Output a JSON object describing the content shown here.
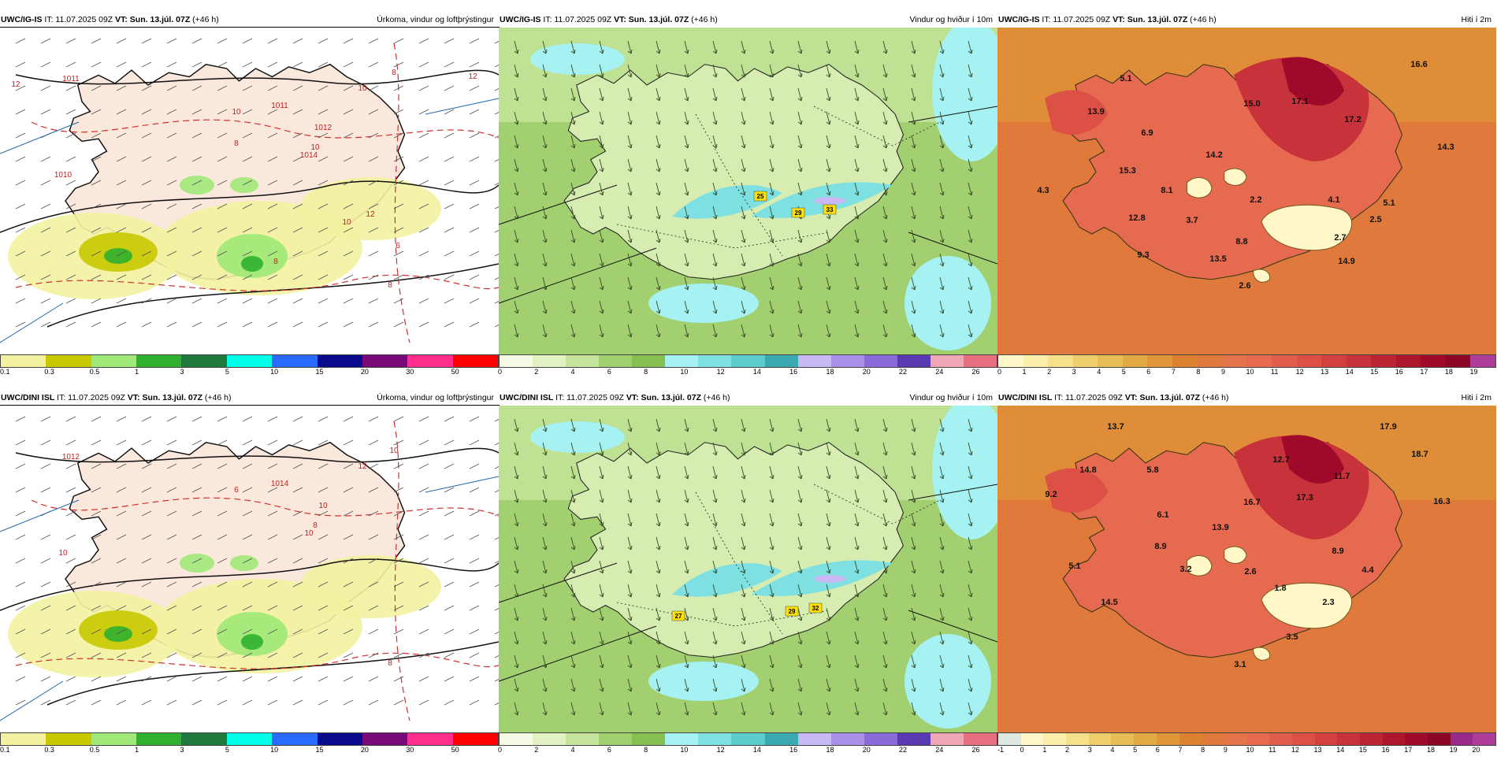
{
  "panels": [
    {
      "id": "p1",
      "model": "UWC/IG-IS",
      "it_label": "IT: 11.07.2025 09Z",
      "vt_label": "VT: Sun. 13.júl. 07Z",
      "lead": "(+46 h)",
      "product": "Úrkoma, vindur og loftþrýstingur",
      "type": "precip",
      "map_labels": [
        "1011",
        "1011",
        "1012",
        "1014",
        "1010",
        "10",
        "10",
        "10",
        "8",
        "8",
        "12",
        "12",
        "12",
        "6",
        "8",
        "10",
        "8"
      ],
      "colorbar": {
        "ticks": [
          "0.1",
          "0.3",
          "0.5",
          "1",
          "3",
          "5",
          "10",
          "15",
          "20",
          "30",
          "50"
        ],
        "colors": [
          "#f2f2a0",
          "#c8c800",
          "#a0e878",
          "#30b030",
          "#1e7a3c",
          "#00ffe6",
          "#2a6aff",
          "#0a0a8c",
          "#7a0a7a",
          "#ff2d8c",
          "#ff0000"
        ]
      }
    },
    {
      "id": "p2",
      "model": "UWC/IG-IS",
      "it_label": "IT: 11.07.2025 09Z",
      "vt_label": "VT: Sun. 13.júl. 07Z",
      "lead": "(+46 h)",
      "product": "Vindur og hviður í 10m",
      "type": "wind",
      "map_labels": [
        "25",
        "29",
        "33"
      ],
      "colorbar": {
        "ticks": [
          "0",
          "2",
          "4",
          "6",
          "8",
          "10",
          "12",
          "14",
          "16",
          "18",
          "20",
          "22",
          "24",
          "26"
        ],
        "colors": [
          "#f6fbe6",
          "#e2f2c2",
          "#c6e59c",
          "#a2d070",
          "#86c050",
          "#a6f2f2",
          "#7ee0e0",
          "#5ccccc",
          "#3aaab0",
          "#c8b8f4",
          "#a890e8",
          "#8a6ad8",
          "#5a3ab0",
          "#f0a6b4",
          "#e87080"
        ]
      }
    },
    {
      "id": "p3",
      "model": "UWC/IG-IS",
      "it_label": "IT: 11.07.2025 09Z",
      "vt_label": "VT: Sun. 13.júl. 07Z",
      "lead": "(+46 h)",
      "product": "Hiti í 2m",
      "type": "temp",
      "map_labels": [
        "5.1",
        "13.9",
        "16.6",
        "15.0",
        "17.1",
        "17.2",
        "6.9",
        "14.3",
        "14.2",
        "15.3",
        "8.1",
        "4.3",
        "2.2",
        "4.1",
        "5.1",
        "12.8",
        "3.7",
        "2.5",
        "8.8",
        "2.7",
        "9.3",
        "13.5",
        "14.9",
        "2.6"
      ],
      "colorbar": {
        "ticks": [
          "0",
          "1",
          "2",
          "3",
          "4",
          "5",
          "6",
          "7",
          "8",
          "9",
          "10",
          "11",
          "12",
          "13",
          "14",
          "15",
          "16",
          "17",
          "18",
          "19"
        ],
        "colors": [
          "#fff7c8",
          "#fbeeaa",
          "#f6e08a",
          "#efcf6c",
          "#e8bd55",
          "#e2a944",
          "#df9538",
          "#dc8230",
          "#e07a3c",
          "#e4744a",
          "#e66a50",
          "#e25e4c",
          "#dc5046",
          "#d44040",
          "#c8323a",
          "#bc2434",
          "#ae162e",
          "#a00a2a",
          "#8c0628",
          "#b03c9a"
        ]
      }
    },
    {
      "id": "p4",
      "model": "UWC/DINI ISL",
      "it_label": "IT: 11.07.2025 09Z",
      "vt_label": "VT: Sun. 13.júl. 07Z",
      "lead": "(+46 h)",
      "product": "Úrkoma, vindur og loftþrýstingur",
      "type": "precip",
      "map_labels": [
        "1012",
        "1014",
        "10",
        "10",
        "10",
        "12",
        "8",
        "6",
        "8",
        "10"
      ],
      "colorbar": {
        "ticks": [
          "0.1",
          "0.3",
          "0.5",
          "1",
          "3",
          "5",
          "10",
          "15",
          "20",
          "30",
          "50"
        ],
        "colors": [
          "#f2f2a0",
          "#c8c800",
          "#a0e878",
          "#30b030",
          "#1e7a3c",
          "#00ffe6",
          "#2a6aff",
          "#0a0a8c",
          "#7a0a7a",
          "#ff2d8c",
          "#ff0000"
        ]
      }
    },
    {
      "id": "p5",
      "model": "UWC/DINI ISL",
      "it_label": "IT: 11.07.2025 09Z",
      "vt_label": "VT: Sun. 13.júl. 07Z",
      "lead": "(+46 h)",
      "product": "Vindur og hviður í 10m",
      "type": "wind",
      "map_labels": [
        "27",
        "29",
        "32"
      ],
      "colorbar": {
        "ticks": [
          "0",
          "2",
          "4",
          "6",
          "8",
          "10",
          "12",
          "14",
          "16",
          "18",
          "20",
          "22",
          "24",
          "26"
        ],
        "colors": [
          "#f6fbe6",
          "#e2f2c2",
          "#c6e59c",
          "#a2d070",
          "#86c050",
          "#a6f2f2",
          "#7ee0e0",
          "#5ccccc",
          "#3aaab0",
          "#c8b8f4",
          "#a890e8",
          "#8a6ad8",
          "#5a3ab0",
          "#f0a6b4",
          "#e87080"
        ]
      }
    },
    {
      "id": "p6",
      "model": "UWC/DINI ISL",
      "it_label": "IT: 11.07.2025 09Z",
      "vt_label": "VT: Sun. 13.júl. 07Z",
      "lead": "(+46 h)",
      "product": "Hiti í 2m",
      "type": "temp",
      "map_labels": [
        "13.7",
        "17.9",
        "18.7",
        "14.8",
        "5.8",
        "12.7",
        "11.7",
        "9.2",
        "16.7",
        "17.3",
        "16.3",
        "6.1",
        "13.9",
        "8.9",
        "8.9",
        "5.1",
        "3.2",
        "2.6",
        "1.8",
        "4.4",
        "2.3",
        "14.5",
        "3.5",
        "3.1"
      ],
      "colorbar": {
        "ticks": [
          "-1",
          "0",
          "1",
          "2",
          "3",
          "4",
          "5",
          "6",
          "7",
          "8",
          "9",
          "10",
          "11",
          "12",
          "13",
          "14",
          "15",
          "16",
          "17",
          "18",
          "19",
          "20"
        ],
        "colors": [
          "#dde8e0",
          "#fff7c8",
          "#fbeeaa",
          "#f6e08a",
          "#efcf6c",
          "#e8bd55",
          "#e2a944",
          "#df9538",
          "#dc8230",
          "#e07a3c",
          "#e4744a",
          "#e66a50",
          "#e25e4c",
          "#dc5046",
          "#d44040",
          "#c8323a",
          "#bc2434",
          "#ae162e",
          "#a00a2a",
          "#8c0628",
          "#9a2a8a",
          "#b03c9a"
        ]
      }
    }
  ]
}
